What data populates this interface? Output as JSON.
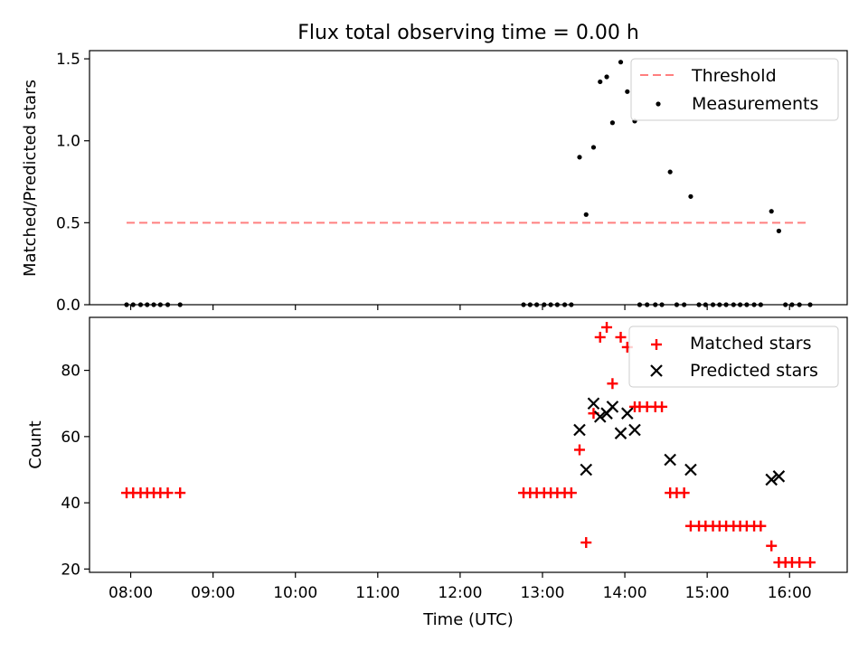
{
  "chart_data": [
    {
      "type": "scatter",
      "title": "Flux total observing time = 0.00 h",
      "xlabel": "",
      "ylabel": "Matched/Predicted stars",
      "xlim": [
        7.5,
        16.7
      ],
      "ylim": [
        0.0,
        1.55
      ],
      "yticks": [
        0.0,
        0.5,
        1.0,
        1.5
      ],
      "yticklabels": [
        "0.0",
        "0.5",
        "1.0",
        "1.5"
      ],
      "xticks": [
        8,
        9,
        10,
        11,
        12,
        13,
        14,
        15,
        16
      ],
      "legend_position": "top-right",
      "threshold": {
        "name": "Threshold",
        "value": 0.5,
        "x_range": [
          7.95,
          16.2
        ],
        "color": "#ff7f7f"
      },
      "series": [
        {
          "name": "Measurements",
          "color": "#000000",
          "marker": "dot",
          "points": [
            [
              7.95,
              0
            ],
            [
              8.03,
              0
            ],
            [
              8.12,
              0
            ],
            [
              8.2,
              0
            ],
            [
              8.28,
              0
            ],
            [
              8.36,
              0
            ],
            [
              8.45,
              0
            ],
            [
              8.6,
              0
            ],
            [
              12.77,
              0
            ],
            [
              12.85,
              0
            ],
            [
              12.93,
              0
            ],
            [
              13.02,
              0
            ],
            [
              13.1,
              0
            ],
            [
              13.18,
              0
            ],
            [
              13.27,
              0
            ],
            [
              13.35,
              0
            ],
            [
              13.45,
              0.9
            ],
            [
              13.53,
              0.55
            ],
            [
              13.62,
              0.96
            ],
            [
              13.7,
              1.36
            ],
            [
              13.78,
              1.39
            ],
            [
              13.85,
              1.11
            ],
            [
              13.95,
              1.48
            ],
            [
              14.03,
              1.3
            ],
            [
              14.12,
              1.12
            ],
            [
              14.18,
              0
            ],
            [
              14.27,
              0
            ],
            [
              14.37,
              0
            ],
            [
              14.45,
              0
            ],
            [
              14.55,
              0.81
            ],
            [
              14.63,
              0
            ],
            [
              14.72,
              0
            ],
            [
              14.8,
              0.66
            ],
            [
              14.9,
              0
            ],
            [
              14.98,
              0
            ],
            [
              15.07,
              0
            ],
            [
              15.15,
              0
            ],
            [
              15.23,
              0
            ],
            [
              15.32,
              0
            ],
            [
              15.4,
              0
            ],
            [
              15.48,
              0
            ],
            [
              15.57,
              0
            ],
            [
              15.65,
              0
            ],
            [
              15.78,
              0.57
            ],
            [
              15.87,
              0.45
            ],
            [
              15.95,
              0
            ],
            [
              16.03,
              0
            ],
            [
              16.12,
              0
            ],
            [
              16.25,
              0
            ]
          ]
        }
      ]
    },
    {
      "type": "scatter",
      "title": "",
      "xlabel": "Time (UTC)",
      "ylabel": "Count",
      "xlim": [
        7.5,
        16.7
      ],
      "ylim": [
        19,
        96
      ],
      "yticks": [
        20,
        40,
        60,
        80
      ],
      "yticklabels": [
        "20",
        "40",
        "60",
        "80"
      ],
      "xticks": [
        8,
        9,
        10,
        11,
        12,
        13,
        14,
        15,
        16
      ],
      "xticklabels": [
        "08:00",
        "09:00",
        "10:00",
        "11:00",
        "12:00",
        "13:00",
        "14:00",
        "15:00",
        "16:00"
      ],
      "legend_position": "top-right",
      "series": [
        {
          "name": "Matched stars",
          "color": "#ff0000",
          "marker": "plus",
          "points": [
            [
              7.95,
              43
            ],
            [
              8.03,
              43
            ],
            [
              8.12,
              43
            ],
            [
              8.2,
              43
            ],
            [
              8.28,
              43
            ],
            [
              8.36,
              43
            ],
            [
              8.45,
              43
            ],
            [
              8.6,
              43
            ],
            [
              12.77,
              43
            ],
            [
              12.85,
              43
            ],
            [
              12.93,
              43
            ],
            [
              13.02,
              43
            ],
            [
              13.1,
              43
            ],
            [
              13.18,
              43
            ],
            [
              13.27,
              43
            ],
            [
              13.35,
              43
            ],
            [
              13.45,
              56
            ],
            [
              13.53,
              28
            ],
            [
              13.62,
              67
            ],
            [
              13.7,
              90
            ],
            [
              13.78,
              93
            ],
            [
              13.85,
              76
            ],
            [
              13.95,
              90
            ],
            [
              14.03,
              87
            ],
            [
              14.12,
              69
            ],
            [
              14.18,
              69
            ],
            [
              14.27,
              69
            ],
            [
              14.37,
              69
            ],
            [
              14.45,
              69
            ],
            [
              14.55,
              43
            ],
            [
              14.63,
              43
            ],
            [
              14.72,
              43
            ],
            [
              14.8,
              33
            ],
            [
              14.9,
              33
            ],
            [
              14.98,
              33
            ],
            [
              15.07,
              33
            ],
            [
              15.15,
              33
            ],
            [
              15.23,
              33
            ],
            [
              15.32,
              33
            ],
            [
              15.4,
              33
            ],
            [
              15.48,
              33
            ],
            [
              15.57,
              33
            ],
            [
              15.65,
              33
            ],
            [
              15.78,
              27
            ],
            [
              15.87,
              22
            ],
            [
              15.95,
              22
            ],
            [
              16.03,
              22
            ],
            [
              16.12,
              22
            ],
            [
              16.25,
              22
            ]
          ]
        },
        {
          "name": "Predicted stars",
          "color": "#000000",
          "marker": "x",
          "points": [
            [
              13.45,
              62
            ],
            [
              13.53,
              50
            ],
            [
              13.62,
              70
            ],
            [
              13.7,
              66
            ],
            [
              13.78,
              67
            ],
            [
              13.85,
              69
            ],
            [
              13.95,
              61
            ],
            [
              14.03,
              67
            ],
            [
              14.12,
              62
            ],
            [
              14.55,
              53
            ],
            [
              14.8,
              50
            ],
            [
              15.78,
              47
            ],
            [
              15.87,
              48
            ]
          ]
        }
      ]
    }
  ]
}
